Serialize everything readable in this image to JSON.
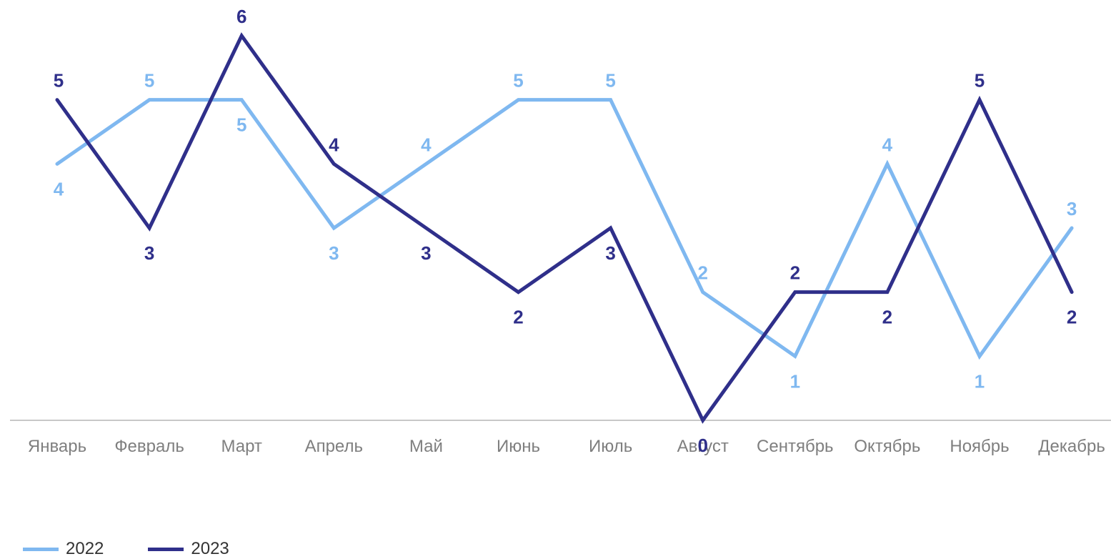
{
  "chart_data": {
    "type": "line",
    "title": "",
    "xlabel": "",
    "ylabel": "",
    "categories": [
      "Январь",
      "Февраль",
      "Март",
      "Апрель",
      "Май",
      "Июнь",
      "Июль",
      "Август",
      "Сентябрь",
      "Октябрь",
      "Ноябрь",
      "Декабрь"
    ],
    "ylim": [
      0,
      6
    ],
    "grid": false,
    "legend_position": "bottom-left",
    "series": [
      {
        "name": "2022",
        "color": "#7fb8f0",
        "values": [
          4,
          5,
          5,
          3,
          4,
          5,
          5,
          2,
          1,
          4,
          1,
          3
        ]
      },
      {
        "name": "2023",
        "color": "#2f2f8a",
        "values": [
          5,
          3,
          6,
          4,
          3,
          2,
          3,
          0,
          2,
          2,
          5,
          2
        ]
      }
    ]
  }
}
